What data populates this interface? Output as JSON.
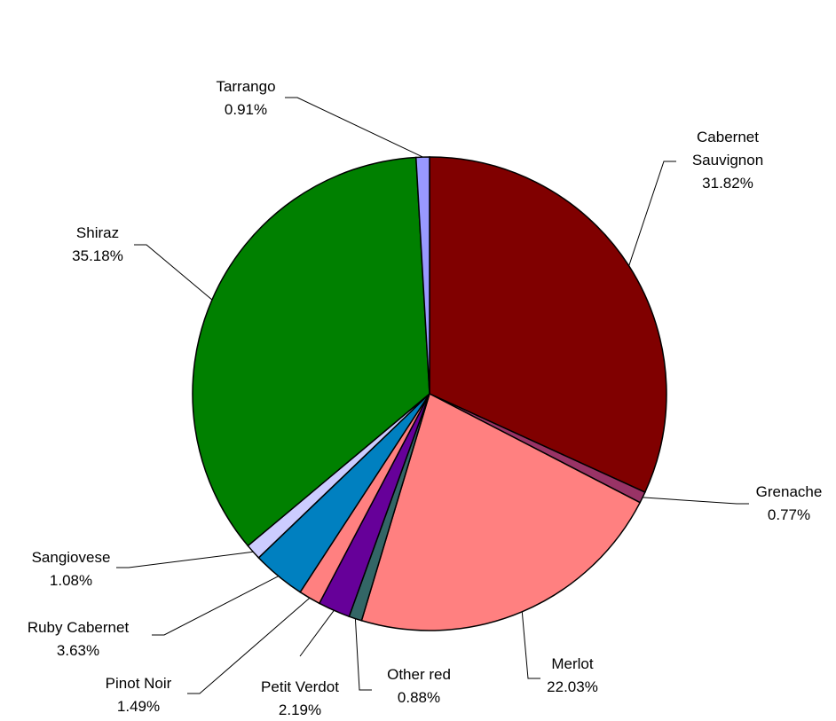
{
  "chart_data": {
    "type": "pie",
    "title": "",
    "start_angle_deg": 0,
    "direction": "clockwise",
    "legend": "none",
    "slices": [
      {
        "name": "Cabernet Sauvignon",
        "lines": [
          "Cabernet",
          "Sauvignon"
        ],
        "value": 31.82,
        "label": "31.82%",
        "color": "#800000"
      },
      {
        "name": "Grenache",
        "lines": [
          "Grenache"
        ],
        "value": 0.77,
        "label": "0.77%",
        "color": "#993366"
      },
      {
        "name": "Merlot",
        "lines": [
          "Merlot"
        ],
        "value": 22.03,
        "label": "22.03%",
        "color": "#ff8080"
      },
      {
        "name": "Other red",
        "lines": [
          "Other red"
        ],
        "value": 0.88,
        "label": "0.88%",
        "color": "#336666"
      },
      {
        "name": "Petit Verdot",
        "lines": [
          "Petit Verdot"
        ],
        "value": 2.19,
        "label": "2.19%",
        "color": "#660099"
      },
      {
        "name": "Pinot Noir",
        "lines": [
          "Pinot Noir"
        ],
        "value": 1.49,
        "label": "1.49%",
        "color": "#ff8080"
      },
      {
        "name": "Ruby Cabernet",
        "lines": [
          "Ruby Cabernet"
        ],
        "value": 3.63,
        "label": "3.63%",
        "color": "#0080c0"
      },
      {
        "name": "Sangiovese",
        "lines": [
          "Sangiovese"
        ],
        "value": 1.08,
        "label": "1.08%",
        "color": "#ccccff"
      },
      {
        "name": "Shiraz",
        "lines": [
          "Shiraz"
        ],
        "value": 35.18,
        "label": "35.18%",
        "color": "#008000"
      },
      {
        "name": "Tarrango",
        "lines": [
          "Tarrango"
        ],
        "value": 0.91,
        "label": "0.91%",
        "color": "#9999ff"
      }
    ]
  }
}
